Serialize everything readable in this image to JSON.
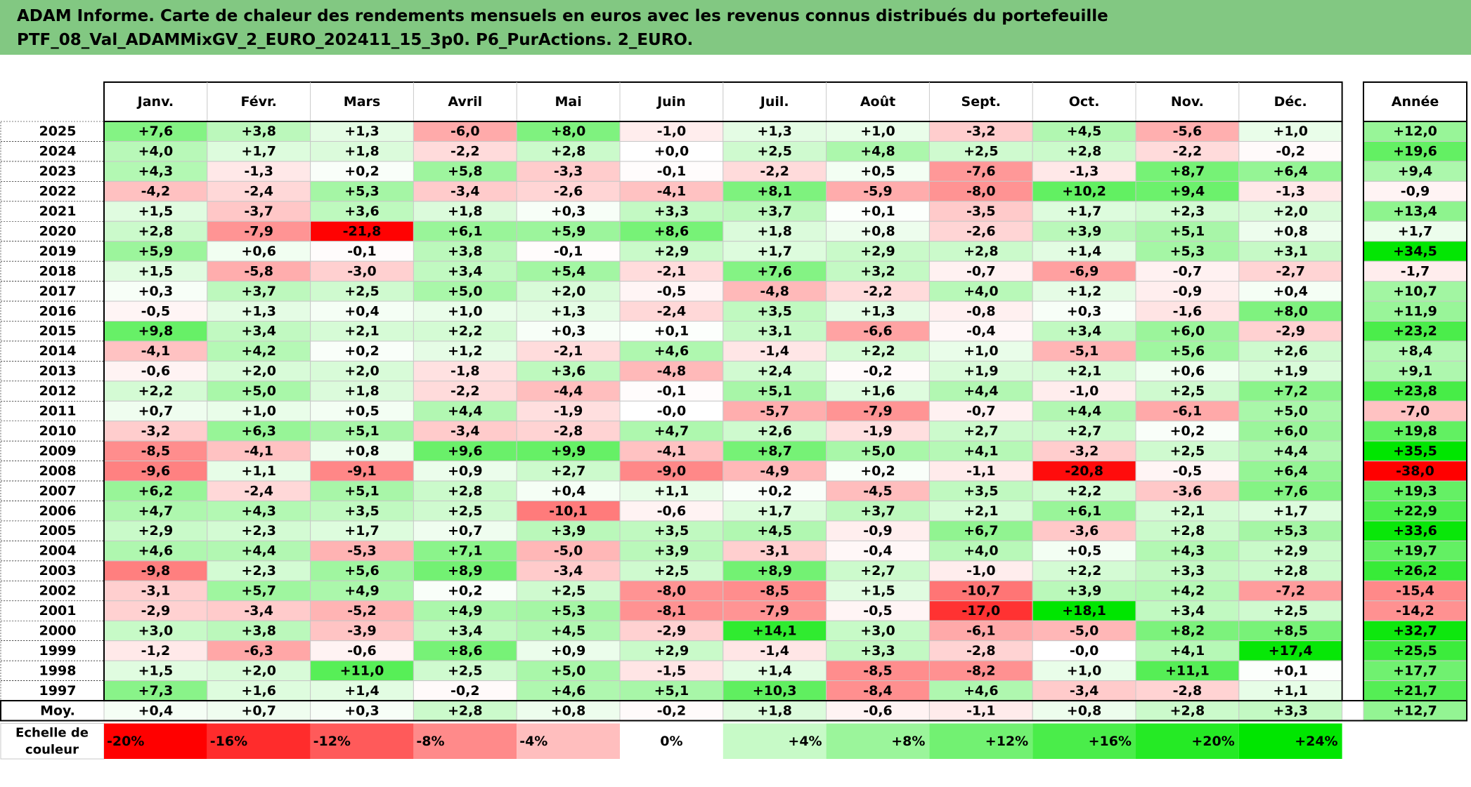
{
  "title_lines": [
    "ADAM Informe. Carte de chaleur des rendements mensuels en euros avec les revenus connus distribués du portefeuille",
    "PTF_08_Val_ADAMMixGV_2_EURO_202411_15_3p0. P6_PurActions. 2_EURO."
  ],
  "chart_data": {
    "type": "heatmap",
    "months": [
      "Janv.",
      "Févr.",
      "Mars",
      "Avril",
      "Mai",
      "Juin",
      "Juil.",
      "Août",
      "Sept.",
      "Oct.",
      "Nov.",
      "Déc."
    ],
    "year_header": "Année",
    "rows": [
      {
        "year": "2025",
        "values": [
          "+7,6",
          "+3,8",
          "+1,3",
          "-6,0",
          "+8,0",
          "-1,0",
          "+1,3",
          "+1,0",
          "-3,2",
          "+4,5",
          "-5,6",
          "+1,0"
        ],
        "annual": "+12,0"
      },
      {
        "year": "2024",
        "values": [
          "+4,0",
          "+1,7",
          "+1,8",
          "-2,2",
          "+2,8",
          "+0,0",
          "+2,5",
          "+4,8",
          "+2,5",
          "+2,8",
          "-2,2",
          "-0,2"
        ],
        "annual": "+19,6"
      },
      {
        "year": "2023",
        "values": [
          "+4,3",
          "-1,3",
          "+0,2",
          "+5,8",
          "-3,3",
          "-0,1",
          "-2,2",
          "+0,5",
          "-7,6",
          "-1,3",
          "+8,7",
          "+6,4"
        ],
        "annual": "+9,4"
      },
      {
        "year": "2022",
        "values": [
          "-4,2",
          "-2,4",
          "+5,3",
          "-3,4",
          "-2,6",
          "-4,1",
          "+8,1",
          "-5,9",
          "-8,0",
          "+10,2",
          "+9,4",
          "-1,3"
        ],
        "annual": "-0,9"
      },
      {
        "year": "2021",
        "values": [
          "+1,5",
          "-3,7",
          "+3,6",
          "+1,8",
          "+0,3",
          "+3,3",
          "+3,7",
          "+0,1",
          "-3,5",
          "+1,7",
          "+2,3",
          "+2,0"
        ],
        "annual": "+13,4"
      },
      {
        "year": "2020",
        "values": [
          "+2,8",
          "-7,9",
          "-21,8",
          "+6,1",
          "+5,9",
          "+8,6",
          "+1,8",
          "+0,8",
          "-2,6",
          "+3,9",
          "+5,1",
          "+0,8"
        ],
        "annual": "+1,7"
      },
      {
        "year": "2019",
        "values": [
          "+5,9",
          "+0,6",
          "-0,1",
          "+3,8",
          "-0,1",
          "+2,9",
          "+1,7",
          "+2,9",
          "+2,8",
          "+1,4",
          "+5,3",
          "+3,1"
        ],
        "annual": "+34,5"
      },
      {
        "year": "2018",
        "values": [
          "+1,5",
          "-5,8",
          "-3,0",
          "+3,4",
          "+5,4",
          "-2,1",
          "+7,6",
          "+3,2",
          "-0,7",
          "-6,9",
          "-0,7",
          "-2,7"
        ],
        "annual": "-1,7"
      },
      {
        "year": "2017",
        "values": [
          "+0,3",
          "+3,7",
          "+2,5",
          "+5,0",
          "+2,0",
          "-0,5",
          "-4,8",
          "-2,2",
          "+4,0",
          "+1,2",
          "-0,9",
          "+0,4"
        ],
        "annual": "+10,7"
      },
      {
        "year": "2016",
        "values": [
          "-0,5",
          "+1,3",
          "+0,4",
          "+1,0",
          "+1,3",
          "-2,4",
          "+3,5",
          "+1,3",
          "-0,8",
          "+0,3",
          "-1,6",
          "+8,0"
        ],
        "annual": "+11,9"
      },
      {
        "year": "2015",
        "values": [
          "+9,8",
          "+3,4",
          "+2,1",
          "+2,2",
          "+0,3",
          "+0,1",
          "+3,1",
          "-6,6",
          "-0,4",
          "+3,4",
          "+6,0",
          "-2,9"
        ],
        "annual": "+23,2"
      },
      {
        "year": "2014",
        "values": [
          "-4,1",
          "+4,2",
          "+0,2",
          "+1,2",
          "-2,1",
          "+4,6",
          "-1,4",
          "+2,2",
          "+1,0",
          "-5,1",
          "+5,6",
          "+2,6"
        ],
        "annual": "+8,4"
      },
      {
        "year": "2013",
        "values": [
          "-0,6",
          "+2,0",
          "+2,0",
          "-1,8",
          "+3,6",
          "-4,8",
          "+2,4",
          "-0,2",
          "+1,9",
          "+2,1",
          "+0,6",
          "+1,9"
        ],
        "annual": "+9,1"
      },
      {
        "year": "2012",
        "values": [
          "+2,2",
          "+5,0",
          "+1,8",
          "-2,2",
          "-4,4",
          "-0,1",
          "+5,1",
          "+1,6",
          "+4,4",
          "-1,0",
          "+2,5",
          "+7,2"
        ],
        "annual": "+23,8"
      },
      {
        "year": "2011",
        "values": [
          "+0,7",
          "+1,0",
          "+0,5",
          "+4,4",
          "-1,9",
          "-0,0",
          "-5,7",
          "-7,9",
          "-0,7",
          "+4,4",
          "-6,1",
          "+5,0"
        ],
        "annual": "-7,0"
      },
      {
        "year": "2010",
        "values": [
          "-3,2",
          "+6,3",
          "+5,1",
          "-3,4",
          "-2,8",
          "+4,7",
          "+2,6",
          "-1,9",
          "+2,7",
          "+2,7",
          "+0,2",
          "+6,0"
        ],
        "annual": "+19,8"
      },
      {
        "year": "2009",
        "values": [
          "-8,5",
          "-4,1",
          "+0,8",
          "+9,6",
          "+9,9",
          "-4,1",
          "+8,7",
          "+5,0",
          "+4,1",
          "-3,2",
          "+2,5",
          "+4,4"
        ],
        "annual": "+35,5"
      },
      {
        "year": "2008",
        "values": [
          "-9,6",
          "+1,1",
          "-9,1",
          "+0,9",
          "+2,7",
          "-9,0",
          "-4,9",
          "+0,2",
          "-1,1",
          "-20,8",
          "-0,5",
          "+6,4"
        ],
        "annual": "-38,0"
      },
      {
        "year": "2007",
        "values": [
          "+6,2",
          "-2,4",
          "+5,1",
          "+2,8",
          "+0,4",
          "+1,1",
          "+0,2",
          "-4,5",
          "+3,5",
          "+2,2",
          "-3,6",
          "+7,6"
        ],
        "annual": "+19,3"
      },
      {
        "year": "2006",
        "values": [
          "+4,7",
          "+4,3",
          "+3,5",
          "+2,5",
          "-10,1",
          "-0,6",
          "+1,7",
          "+3,7",
          "+2,1",
          "+6,1",
          "+2,1",
          "+1,7"
        ],
        "annual": "+22,9"
      },
      {
        "year": "2005",
        "values": [
          "+2,9",
          "+2,3",
          "+1,7",
          "+0,7",
          "+3,9",
          "+3,5",
          "+4,5",
          "-0,9",
          "+6,7",
          "-3,6",
          "+2,8",
          "+5,3"
        ],
        "annual": "+33,6"
      },
      {
        "year": "2004",
        "values": [
          "+4,6",
          "+4,4",
          "-5,3",
          "+7,1",
          "-5,0",
          "+3,9",
          "-3,1",
          "-0,4",
          "+4,0",
          "+0,5",
          "+4,3",
          "+2,9"
        ],
        "annual": "+19,7"
      },
      {
        "year": "2003",
        "values": [
          "-9,8",
          "+2,3",
          "+5,6",
          "+8,9",
          "-3,4",
          "+2,5",
          "+8,9",
          "+2,7",
          "-1,0",
          "+2,2",
          "+3,3",
          "+2,8"
        ],
        "annual": "+26,2"
      },
      {
        "year": "2002",
        "values": [
          "-3,1",
          "+5,7",
          "+4,9",
          "+0,2",
          "+2,5",
          "-8,0",
          "-8,5",
          "+1,5",
          "-10,7",
          "+3,9",
          "+4,2",
          "-7,2"
        ],
        "annual": "-15,4"
      },
      {
        "year": "2001",
        "values": [
          "-2,9",
          "-3,4",
          "-5,2",
          "+4,9",
          "+5,3",
          "-8,1",
          "-7,9",
          "-0,5",
          "-17,0",
          "+18,1",
          "+3,4",
          "+2,5"
        ],
        "annual": "-14,2"
      },
      {
        "year": "2000",
        "values": [
          "+3,0",
          "+3,8",
          "-3,9",
          "+3,4",
          "+4,5",
          "-2,9",
          "+14,1",
          "+3,0",
          "-6,1",
          "-5,0",
          "+8,2",
          "+8,5"
        ],
        "annual": "+32,7"
      },
      {
        "year": "1999",
        "values": [
          "-1,2",
          "-6,3",
          "-0,6",
          "+8,6",
          "+0,9",
          "+2,9",
          "-1,4",
          "+3,3",
          "-2,8",
          "-0,0",
          "+4,1",
          "+17,4"
        ],
        "annual": "+25,5"
      },
      {
        "year": "1998",
        "values": [
          "+1,5",
          "+2,0",
          "+11,0",
          "+2,5",
          "+5,0",
          "-1,5",
          "+1,4",
          "-8,5",
          "-8,2",
          "+1,0",
          "+11,1",
          "+0,1"
        ],
        "annual": "+17,7"
      },
      {
        "year": "1997",
        "values": [
          "+7,3",
          "+1,6",
          "+1,4",
          "-0,2",
          "+4,6",
          "+5,1",
          "+10,3",
          "-8,4",
          "+4,6",
          "-3,4",
          "-2,8",
          "+1,1"
        ],
        "annual": "+21,7"
      }
    ],
    "average": {
      "label": "Moy.",
      "values": [
        "+0,4",
        "+0,7",
        "+0,3",
        "+2,8",
        "+0,8",
        "-0,2",
        "+1,8",
        "-0,6",
        "-1,1",
        "+0,8",
        "+2,8",
        "+3,3"
      ],
      "annual": "+12,7"
    },
    "scale": {
      "label_lines": [
        "Echelle de",
        "couleur"
      ],
      "stops": [
        "-20%",
        "-16%",
        "-12%",
        "-8%",
        "-4%",
        "0%",
        "+4%",
        "+8%",
        "+12%",
        "+16%",
        "+20%",
        "+24%"
      ]
    }
  },
  "colors": {
    "title_bg": "#82c882",
    "negative_max": "#ff0000",
    "positive_max": "#00e600",
    "neutral": "#ffffff"
  }
}
